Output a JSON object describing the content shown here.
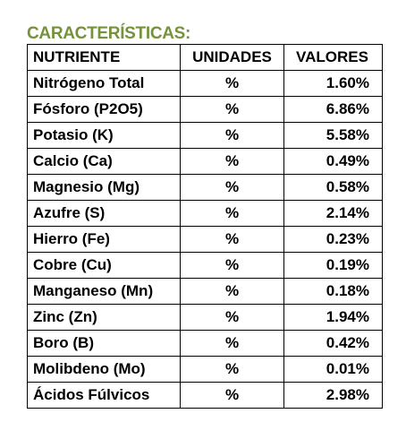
{
  "title": "CARACTERÍSTICAS:",
  "colors": {
    "title": "#76923c",
    "text": "#000000",
    "border": "#000000"
  },
  "table": {
    "headers": [
      "NUTRIENTE",
      "UNIDADES",
      "VALORES"
    ],
    "rows": [
      {
        "nutriente": "Nitrógeno Total",
        "unidad": "%",
        "valor": "1.60%"
      },
      {
        "nutriente": "Fósforo (P2O5)",
        "unidad": "%",
        "valor": "6.86%"
      },
      {
        "nutriente": "Potasio (K)",
        "unidad": "%",
        "valor": "5.58%"
      },
      {
        "nutriente": "Calcio (Ca)",
        "unidad": "%",
        "valor": "0.49%"
      },
      {
        "nutriente": "Magnesio (Mg)",
        "unidad": "%",
        "valor": "0.58%"
      },
      {
        "nutriente": "Azufre (S)",
        "unidad": "%",
        "valor": "2.14%"
      },
      {
        "nutriente": "Hierro (Fe)",
        "unidad": "%",
        "valor": "0.23%"
      },
      {
        "nutriente": "Cobre (Cu)",
        "unidad": "%",
        "valor": "0.19%"
      },
      {
        "nutriente": "Manganeso (Mn)",
        "unidad": "%",
        "valor": "0.18%"
      },
      {
        "nutriente": "Zinc (Zn)",
        "unidad": "%",
        "valor": "1.94%"
      },
      {
        "nutriente": "Boro (B)",
        "unidad": "%",
        "valor": "0.42%"
      },
      {
        "nutriente": "Molibdeno (Mo)",
        "unidad": "%",
        "valor": "0.01%"
      },
      {
        "nutriente": "Ácidos Fúlvicos",
        "unidad": "%",
        "valor": "2.98%"
      }
    ]
  }
}
